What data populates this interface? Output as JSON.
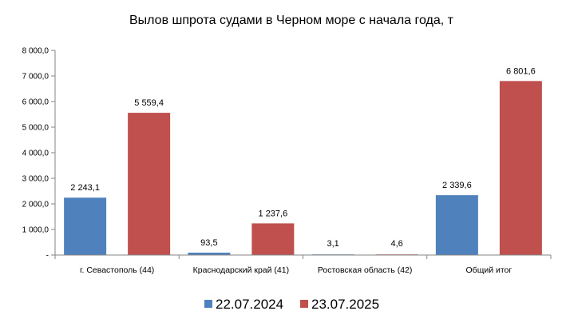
{
  "colors": {
    "series_2024": "#4f81bd",
    "series_2025": "#c0504d",
    "axis": "#868686"
  },
  "chart_data": {
    "type": "bar",
    "title": "Вылов шпрота судами в Черном море с начала  года, т",
    "xlabel": "",
    "ylabel": "",
    "ylim": [
      0,
      8000
    ],
    "yticks": [
      0,
      1000,
      2000,
      3000,
      4000,
      5000,
      6000,
      7000,
      8000
    ],
    "ytick_labels": [
      "-",
      "1 000,0",
      "2 000,0",
      "3 000,0",
      "4 000,0",
      "5 000,0",
      "6 000,0",
      "7 000,0",
      "8 000,0"
    ],
    "grid": false,
    "legend_position": "bottom",
    "categories": [
      "г. Севастополь (44)",
      "Краснодарский край (41)",
      "Ростовская область (42)",
      "Общий итог"
    ],
    "series": [
      {
        "name": "22.07.2024",
        "values": [
          2243.1,
          93.5,
          3.1,
          2339.6
        ],
        "labels": [
          "2 243,1",
          "93,5",
          "3,1",
          "2 339,6"
        ]
      },
      {
        "name": "23.07.2025",
        "values": [
          5559.4,
          1237.6,
          4.6,
          6801.6
        ],
        "labels": [
          "5 559,4",
          "1 237,6",
          "4,6",
          "6 801,6"
        ]
      }
    ]
  }
}
